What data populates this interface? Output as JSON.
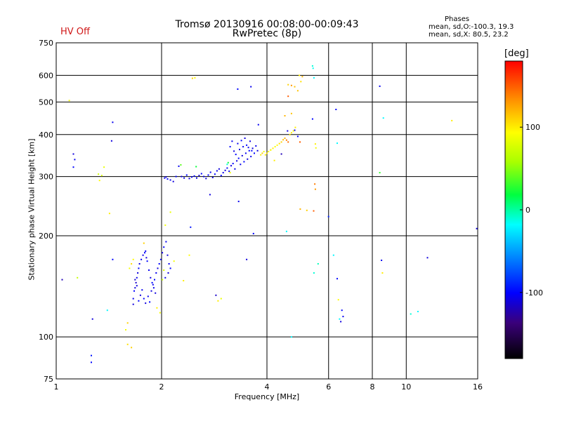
{
  "header": {
    "title": "Tromsø 20130916 00:08:00-00:09:43",
    "subtitle": "RwPretec (8p)",
    "status": "HV Off",
    "stats_heading": "Phases",
    "stats_o": "mean, sd,O:-100.3, 19.3",
    "stats_x": "mean, sd,X:  80.5, 23.2"
  },
  "colors": {
    "status": "#d01818",
    "grid": "#000000"
  },
  "colorbar": {
    "unit": "[deg]",
    "range": [
      -180,
      180
    ],
    "ticks": [
      100,
      0,
      -100
    ]
  },
  "chart_data": {
    "type": "scatter",
    "x_scale": "log",
    "y_scale": "log",
    "xlabel": "Frequency [MHz]",
    "ylabel": "Stationary phase Virtual Height [km]",
    "xlim": [
      1,
      16
    ],
    "ylim": [
      75,
      750
    ],
    "xticks": [
      1,
      2,
      4,
      6,
      8,
      10,
      16
    ],
    "yticks": [
      75,
      100,
      200,
      300,
      400,
      500,
      600,
      750
    ],
    "grid": true,
    "points": [
      [
        1.04,
        148,
        -120
      ],
      [
        1.12,
        350,
        -110
      ],
      [
        1.13,
        337,
        -105
      ],
      [
        1.12,
        320,
        -100
      ],
      [
        1.15,
        150,
        70
      ],
      [
        1.09,
        505,
        90
      ],
      [
        1.35,
        302,
        80
      ],
      [
        1.37,
        320,
        85
      ],
      [
        1.32,
        305,
        75
      ],
      [
        1.33,
        292,
        95
      ],
      [
        1.27,
        113,
        -110
      ],
      [
        1.26,
        88,
        -95
      ],
      [
        1.26,
        84,
        -100
      ],
      [
        1.4,
        120,
        -20
      ],
      [
        1.45,
        435,
        -105
      ],
      [
        1.44,
        383,
        -110
      ],
      [
        1.45,
        170,
        -100
      ],
      [
        1.42,
        233,
        100
      ],
      [
        1.6,
        110,
        110
      ],
      [
        1.58,
        105,
        90
      ],
      [
        1.6,
        95,
        105
      ],
      [
        1.64,
        93,
        110
      ],
      [
        1.78,
        190,
        110
      ],
      [
        1.66,
        125,
        -110
      ],
      [
        1.66,
        130,
        -105
      ],
      [
        1.67,
        137,
        -100
      ],
      [
        1.68,
        140,
        -110
      ],
      [
        1.69,
        145,
        -115
      ],
      [
        1.7,
        150,
        -105
      ],
      [
        1.71,
        155,
        -110
      ],
      [
        1.72,
        160,
        -100
      ],
      [
        1.73,
        165,
        -110
      ],
      [
        1.75,
        170,
        -105
      ],
      [
        1.77,
        175,
        -110
      ],
      [
        1.79,
        178,
        -100
      ],
      [
        1.8,
        180,
        -105
      ],
      [
        1.81,
        172,
        -110
      ],
      [
        1.82,
        168,
        -100
      ],
      [
        1.84,
        158,
        -105
      ],
      [
        1.86,
        150,
        -110
      ],
      [
        1.88,
        145,
        -100
      ],
      [
        1.9,
        140,
        -105
      ],
      [
        1.92,
        135,
        -110
      ],
      [
        1.72,
        128,
        -100
      ],
      [
        1.74,
        133,
        -110
      ],
      [
        1.76,
        138,
        -105
      ],
      [
        1.78,
        130,
        -100
      ],
      [
        1.8,
        126,
        -110
      ],
      [
        1.83,
        132,
        -105
      ],
      [
        1.85,
        127,
        -100
      ],
      [
        1.87,
        137,
        -110
      ],
      [
        1.89,
        143,
        -105
      ],
      [
        1.91,
        148,
        -100
      ],
      [
        1.93,
        155,
        -105
      ],
      [
        1.95,
        160,
        -110
      ],
      [
        1.97,
        165,
        -100
      ],
      [
        1.99,
        170,
        -105
      ],
      [
        2.01,
        178,
        -110
      ],
      [
        2.03,
        185,
        -100
      ],
      [
        2.06,
        192,
        -105
      ],
      [
        2.08,
        175,
        -110
      ],
      [
        2.1,
        165,
        -105
      ],
      [
        2.12,
        160,
        -100
      ],
      [
        2.09,
        155,
        -110
      ],
      [
        2.05,
        150,
        -105
      ],
      [
        1.68,
        148,
        -115
      ],
      [
        1.7,
        142,
        -110
      ],
      [
        1.62,
        160,
        90
      ],
      [
        1.64,
        165,
        105
      ],
      [
        1.66,
        170,
        95
      ],
      [
        1.94,
        122,
        100
      ],
      [
        1.98,
        118,
        90
      ],
      [
        2.03,
        158,
        80
      ],
      [
        2.01,
        148,
        70
      ],
      [
        2.05,
        215,
        90
      ],
      [
        2.12,
        235,
        85
      ],
      [
        2.17,
        168,
        90
      ],
      [
        2.4,
        175,
        95
      ],
      [
        2.31,
        147,
        100
      ],
      [
        2.45,
        588,
        110
      ],
      [
        2.49,
        590,
        95
      ],
      [
        2.04,
        297,
        -105
      ],
      [
        2.06,
        299,
        -110
      ],
      [
        2.08,
        295,
        -100
      ],
      [
        2.12,
        293,
        -105
      ],
      [
        2.16,
        290,
        -110
      ],
      [
        2.2,
        300,
        -100
      ],
      [
        2.24,
        322,
        -105
      ],
      [
        2.28,
        300,
        -110
      ],
      [
        2.32,
        297,
        -105
      ],
      [
        2.36,
        303,
        -100
      ],
      [
        2.4,
        296,
        -110
      ],
      [
        2.44,
        299,
        -105
      ],
      [
        2.48,
        301,
        -100
      ],
      [
        2.52,
        297,
        -105
      ],
      [
        2.56,
        302,
        -110
      ],
      [
        2.6,
        306,
        -100
      ],
      [
        2.64,
        300,
        -105
      ],
      [
        2.68,
        296,
        -110
      ],
      [
        2.72,
        303,
        -100
      ],
      [
        2.76,
        309,
        -105
      ],
      [
        2.8,
        298,
        -110
      ],
      [
        2.84,
        305,
        -100
      ],
      [
        2.88,
        312,
        -105
      ],
      [
        2.92,
        316,
        -110
      ],
      [
        2.96,
        302,
        -100
      ],
      [
        3.0,
        308,
        -105
      ],
      [
        3.04,
        313,
        -110
      ],
      [
        3.08,
        318,
        -100
      ],
      [
        3.12,
        311,
        -105
      ],
      [
        3.16,
        323,
        -110
      ],
      [
        3.2,
        328,
        -100
      ],
      [
        3.24,
        316,
        -105
      ],
      [
        3.28,
        334,
        -110
      ],
      [
        3.32,
        340,
        -100
      ],
      [
        3.36,
        326,
        -105
      ],
      [
        3.4,
        346,
        -110
      ],
      [
        3.44,
        332,
        -100
      ],
      [
        3.48,
        352,
        -105
      ],
      [
        3.52,
        338,
        -110
      ],
      [
        3.56,
        358,
        -100
      ],
      [
        3.6,
        344,
        -105
      ],
      [
        3.64,
        364,
        -110
      ],
      [
        3.68,
        352,
        -100
      ],
      [
        3.72,
        370,
        -105
      ],
      [
        3.76,
        358,
        -110
      ],
      [
        3.14,
        368,
        -100
      ],
      [
        3.18,
        382,
        -105
      ],
      [
        3.22,
        357,
        -110
      ],
      [
        3.26,
        349,
        -100
      ],
      [
        3.3,
        376,
        -105
      ],
      [
        3.34,
        361,
        -110
      ],
      [
        3.38,
        384,
        -100
      ],
      [
        3.42,
        368,
        -105
      ],
      [
        3.46,
        390,
        -110
      ],
      [
        3.5,
        372,
        -100
      ],
      [
        3.54,
        366,
        -105
      ],
      [
        3.58,
        382,
        -110
      ],
      [
        3.62,
        358,
        -100
      ],
      [
        3.78,
        428,
        -105
      ],
      [
        3.3,
        546,
        -100
      ],
      [
        3.6,
        555,
        -105
      ],
      [
        2.75,
        265,
        -110
      ],
      [
        2.86,
        133,
        -115
      ],
      [
        3.32,
        253,
        -105
      ],
      [
        3.5,
        170,
        -110
      ],
      [
        3.66,
        203,
        -100
      ],
      [
        2.42,
        212,
        -95
      ],
      [
        3.08,
        326,
        -10
      ],
      [
        3.1,
        330,
        20
      ],
      [
        2.27,
        325,
        40
      ],
      [
        2.51,
        321,
        20
      ],
      [
        2.9,
        128,
        100
      ],
      [
        2.96,
        130,
        85
      ],
      [
        3.14,
        308,
        90
      ],
      [
        3.84,
        348,
        100
      ],
      [
        3.88,
        352,
        110
      ],
      [
        3.92,
        356,
        90
      ],
      [
        3.96,
        348,
        100
      ],
      [
        4.0,
        352,
        105
      ],
      [
        4.04,
        356,
        95
      ],
      [
        4.1,
        360,
        110
      ],
      [
        4.16,
        364,
        100
      ],
      [
        4.22,
        368,
        90
      ],
      [
        4.28,
        372,
        95
      ],
      [
        4.34,
        376,
        105
      ],
      [
        4.4,
        380,
        110
      ],
      [
        4.45,
        386,
        115
      ],
      [
        4.5,
        390,
        120
      ],
      [
        4.55,
        385,
        140
      ],
      [
        4.6,
        380,
        145
      ],
      [
        4.65,
        400,
        105
      ],
      [
        4.7,
        405,
        100
      ],
      [
        4.76,
        410,
        95
      ],
      [
        4.82,
        420,
        100
      ],
      [
        4.6,
        520,
        150
      ],
      [
        4.7,
        560,
        130
      ],
      [
        4.9,
        540,
        115
      ],
      [
        5.0,
        575,
        105
      ],
      [
        4.95,
        600,
        100
      ],
      [
        4.5,
        455,
        120
      ],
      [
        4.7,
        462,
        115
      ],
      [
        4.1,
        360,
        90
      ],
      [
        4.2,
        335,
        100
      ],
      [
        4.4,
        350,
        -120
      ],
      [
        4.8,
        412,
        -105
      ],
      [
        4.58,
        410,
        -110
      ],
      [
        4.9,
        395,
        -100
      ],
      [
        4.97,
        380,
        150
      ],
      [
        4.55,
        206,
        -20
      ],
      [
        4.7,
        100,
        -20
      ],
      [
        4.98,
        240,
        120
      ],
      [
        5.2,
        238,
        110
      ],
      [
        5.4,
        640,
        -10
      ],
      [
        5.42,
        630,
        -15
      ],
      [
        5.45,
        590,
        -20
      ],
      [
        5.4,
        445,
        -100
      ],
      [
        5.44,
        237,
        150
      ],
      [
        5.5,
        375,
        100
      ],
      [
        5.52,
        365,
        90
      ],
      [
        5.48,
        285,
        140
      ],
      [
        5.5,
        275,
        130
      ],
      [
        5.6,
        165,
        -5
      ],
      [
        5.45,
        155,
        -10
      ],
      [
        6.0,
        228,
        -90
      ],
      [
        6.2,
        175,
        -20
      ],
      [
        6.3,
        475,
        -100
      ],
      [
        6.35,
        377,
        -20
      ],
      [
        6.4,
        129,
        95
      ],
      [
        6.35,
        149,
        -100
      ],
      [
        6.45,
        113,
        -20
      ],
      [
        6.5,
        111,
        -110
      ],
      [
        6.55,
        120,
        -100
      ],
      [
        6.6,
        115,
        -105
      ],
      [
        8.4,
        557,
        -105
      ],
      [
        8.6,
        448,
        -20
      ],
      [
        8.4,
        308,
        30
      ],
      [
        8.5,
        169,
        -105
      ],
      [
        8.55,
        155,
        100
      ],
      [
        10.3,
        117,
        -10
      ],
      [
        10.8,
        119,
        -20
      ],
      [
        11.5,
        172,
        -110
      ],
      [
        13.5,
        440,
        100
      ],
      [
        15.9,
        210,
        -110
      ],
      [
        5.05,
        595,
        120
      ],
      [
        4.8,
        555,
        115
      ],
      [
        4.6,
        563,
        110
      ]
    ]
  }
}
